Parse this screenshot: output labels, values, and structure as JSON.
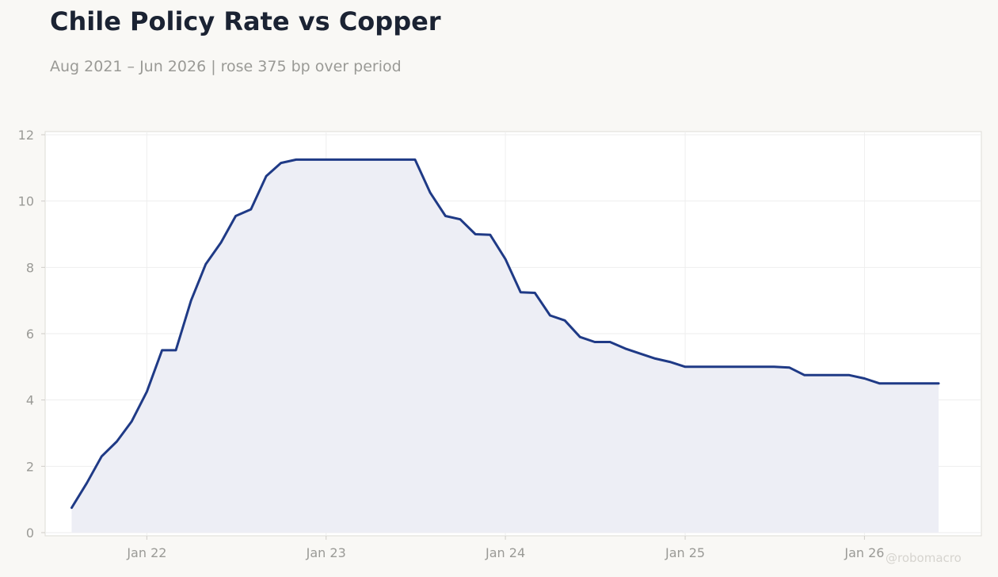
{
  "title": "Chile Policy Rate vs Copper",
  "subtitle": "Aug 2021 – Jun 2026 | rose 375 bp over period",
  "watermark": "@robomacro",
  "colors": {
    "background": "#f9f8f5",
    "plot_background": "#ffffff",
    "line": "#1f3a86",
    "area_fill": "#edeef5",
    "grid": "#eeeeee",
    "tick_text": "#9a9a96",
    "title_text": "#1b2333"
  },
  "chart_data": {
    "type": "area",
    "title": "Chile Policy Rate vs Copper",
    "subtitle": "Aug 2021 – Jun 2026 | rose 375 bp over period",
    "xlabel": "",
    "ylabel": "",
    "ylim": [
      0,
      12
    ],
    "xlim": [
      "2021-06-08",
      "2026-08-27"
    ],
    "yticks": [
      0,
      2,
      4,
      6,
      8,
      10,
      12
    ],
    "xticks": [
      {
        "date": "2022-01-01",
        "label": "Jan 22"
      },
      {
        "date": "2023-01-01",
        "label": "Jan 23"
      },
      {
        "date": "2024-01-01",
        "label": "Jan 24"
      },
      {
        "date": "2025-01-01",
        "label": "Jan 25"
      },
      {
        "date": "2026-01-01",
        "label": "Jan 26"
      }
    ],
    "grid": true,
    "legend": "none",
    "series": [
      {
        "x": [
          "2021-08",
          "2021-09",
          "2021-10",
          "2021-11",
          "2021-12",
          "2022-01",
          "2022-02",
          "2022-03",
          "2022-04",
          "2022-05",
          "2022-06",
          "2022-07",
          "2022-08",
          "2022-09",
          "2022-10",
          "2022-11",
          "2022-12",
          "2023-01",
          "2023-02",
          "2023-03",
          "2023-04",
          "2023-05",
          "2023-06",
          "2023-07",
          "2023-08",
          "2023-09",
          "2023-10",
          "2023-11",
          "2023-12",
          "2024-01",
          "2024-02",
          "2024-03",
          "2024-04",
          "2024-05",
          "2024-06",
          "2024-07",
          "2024-08",
          "2024-09",
          "2024-10",
          "2024-11",
          "2024-12",
          "2025-01",
          "2025-02",
          "2025-03",
          "2025-04",
          "2025-05",
          "2025-06",
          "2025-07",
          "2025-08",
          "2025-09",
          "2025-10",
          "2025-11",
          "2025-12",
          "2026-01",
          "2026-02",
          "2026-03",
          "2026-04",
          "2026-05",
          "2026-06"
        ],
        "values": [
          0.75,
          1.5,
          2.3,
          2.75,
          3.35,
          4.25,
          5.5,
          5.5,
          7.0,
          8.1,
          8.75,
          9.55,
          9.75,
          10.75,
          11.15,
          11.25,
          11.25,
          11.25,
          11.25,
          11.25,
          11.25,
          11.25,
          11.25,
          11.25,
          10.25,
          9.55,
          9.45,
          9.0,
          8.98,
          8.25,
          7.25,
          7.23,
          6.55,
          6.4,
          5.9,
          5.75,
          5.75,
          5.55,
          5.4,
          5.25,
          5.15,
          5.0,
          5.0,
          5.0,
          5.0,
          5.0,
          5.0,
          5.0,
          4.98,
          4.75,
          4.75,
          4.75,
          4.75,
          4.65,
          4.5,
          4.5,
          4.5,
          4.5,
          4.5
        ]
      }
    ]
  }
}
